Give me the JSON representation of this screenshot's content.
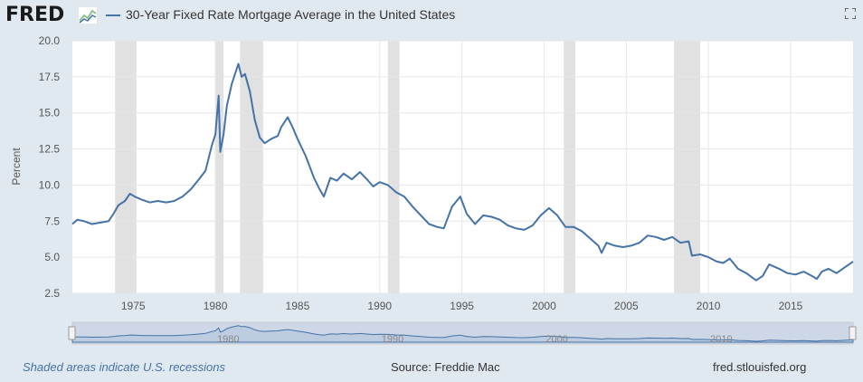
{
  "header": {
    "logo": "FRED",
    "logo_icon": "fred-chart-icon",
    "series_title": "30-Year Fixed Rate Mortgage Average in the United States",
    "fullscreen_icon": "fullscreen-icon"
  },
  "footer": {
    "recession_note": "Shaded areas indicate U.S. recessions",
    "source": "Source: Freddie Mac",
    "site": "fred.stlouisfed.org"
  },
  "navigator": {
    "tick_labels": [
      "1980",
      "1990",
      "2000",
      "2010"
    ]
  },
  "colors": {
    "series": "#4572a7",
    "recession": "#e1e1e1",
    "background": "#e1e9f0",
    "plot": "#ffffff",
    "navigator_mask": "#b4c4de"
  },
  "chart_data": {
    "type": "line",
    "title": "30-Year Fixed Rate Mortgage Average in the United States",
    "xlabel": "",
    "ylabel": "Percent",
    "xlim": [
      1971.3,
      2018.8
    ],
    "ylim": [
      2.5,
      20.0
    ],
    "yticks": [
      2.5,
      5.0,
      7.5,
      10.0,
      12.5,
      15.0,
      17.5,
      20.0
    ],
    "ytick_labels": [
      "2.5",
      "5.0",
      "7.5",
      "10.0",
      "12.5",
      "15.0",
      "17.5",
      "20.0"
    ],
    "xticks": [
      1975,
      1980,
      1985,
      1990,
      1995,
      2000,
      2005,
      2010,
      2015
    ],
    "xtick_labels": [
      "1975",
      "1980",
      "1985",
      "1990",
      "1995",
      "2000",
      "2005",
      "2010",
      "2015"
    ],
    "grid": true,
    "legend": "top-left",
    "recessions": [
      [
        1973.9,
        1975.2
      ],
      [
        1980.0,
        1980.5
      ],
      [
        1981.5,
        1982.9
      ],
      [
        1990.5,
        1991.2
      ],
      [
        2001.2,
        2001.9
      ],
      [
        2007.9,
        2009.5
      ]
    ],
    "series": [
      {
        "name": "30-Year Fixed Rate Mortgage Average in the United States",
        "x": [
          1971.3,
          1971.6,
          1972.0,
          1972.5,
          1973.0,
          1973.5,
          1973.8,
          1974.1,
          1974.5,
          1974.8,
          1975.1,
          1975.5,
          1976.0,
          1976.5,
          1977.0,
          1977.5,
          1978.0,
          1978.5,
          1979.0,
          1979.4,
          1979.8,
          1980.0,
          1980.2,
          1980.3,
          1980.5,
          1980.7,
          1981.0,
          1981.4,
          1981.6,
          1981.8,
          1982.1,
          1982.4,
          1982.7,
          1983.0,
          1983.4,
          1983.8,
          1984.0,
          1984.4,
          1984.7,
          1985.0,
          1985.5,
          1986.0,
          1986.3,
          1986.6,
          1987.0,
          1987.4,
          1987.8,
          1988.3,
          1988.8,
          1989.3,
          1989.6,
          1990.0,
          1990.5,
          1991.0,
          1991.5,
          1992.0,
          1992.5,
          1993.0,
          1993.5,
          1993.9,
          1994.4,
          1994.9,
          1995.3,
          1995.8,
          1996.3,
          1996.8,
          1997.3,
          1997.8,
          1998.3,
          1998.8,
          1999.3,
          1999.8,
          2000.3,
          2000.8,
          2001.3,
          2001.8,
          2002.3,
          2002.8,
          2003.3,
          2003.5,
          2003.8,
          2004.3,
          2004.8,
          2005.3,
          2005.8,
          2006.3,
          2006.8,
          2007.3,
          2007.8,
          2008.3,
          2008.8,
          2009.0,
          2009.5,
          2010.0,
          2010.5,
          2010.9,
          2011.3,
          2011.8,
          2012.3,
          2012.9,
          2013.3,
          2013.7,
          2014.3,
          2014.8,
          2015.3,
          2015.8,
          2016.3,
          2016.6,
          2016.9,
          2017.3,
          2017.8,
          2018.3,
          2018.8
        ],
        "values": [
          7.3,
          7.6,
          7.5,
          7.3,
          7.4,
          7.5,
          8.0,
          8.6,
          8.9,
          9.4,
          9.2,
          9.0,
          8.8,
          8.9,
          8.8,
          8.9,
          9.2,
          9.7,
          10.4,
          11.0,
          12.8,
          13.5,
          16.2,
          12.3,
          13.5,
          15.5,
          17.0,
          18.4,
          17.5,
          17.7,
          16.5,
          14.5,
          13.3,
          12.9,
          13.2,
          13.4,
          14.0,
          14.7,
          14.0,
          13.2,
          12.0,
          10.5,
          9.8,
          9.2,
          10.5,
          10.3,
          10.8,
          10.4,
          10.9,
          10.3,
          9.9,
          10.2,
          10.0,
          9.5,
          9.2,
          8.5,
          7.9,
          7.3,
          7.1,
          7.0,
          8.5,
          9.2,
          8.0,
          7.3,
          7.9,
          7.8,
          7.6,
          7.2,
          7.0,
          6.9,
          7.2,
          7.9,
          8.4,
          7.9,
          7.1,
          7.1,
          6.8,
          6.3,
          5.8,
          5.3,
          6.0,
          5.8,
          5.7,
          5.8,
          6.0,
          6.5,
          6.4,
          6.2,
          6.4,
          6.0,
          6.1,
          5.1,
          5.2,
          5.0,
          4.7,
          4.6,
          4.9,
          4.2,
          3.9,
          3.4,
          3.7,
          4.5,
          4.2,
          3.9,
          3.8,
          4.0,
          3.7,
          3.5,
          4.0,
          4.2,
          3.9,
          4.3,
          4.7
        ]
      }
    ]
  }
}
